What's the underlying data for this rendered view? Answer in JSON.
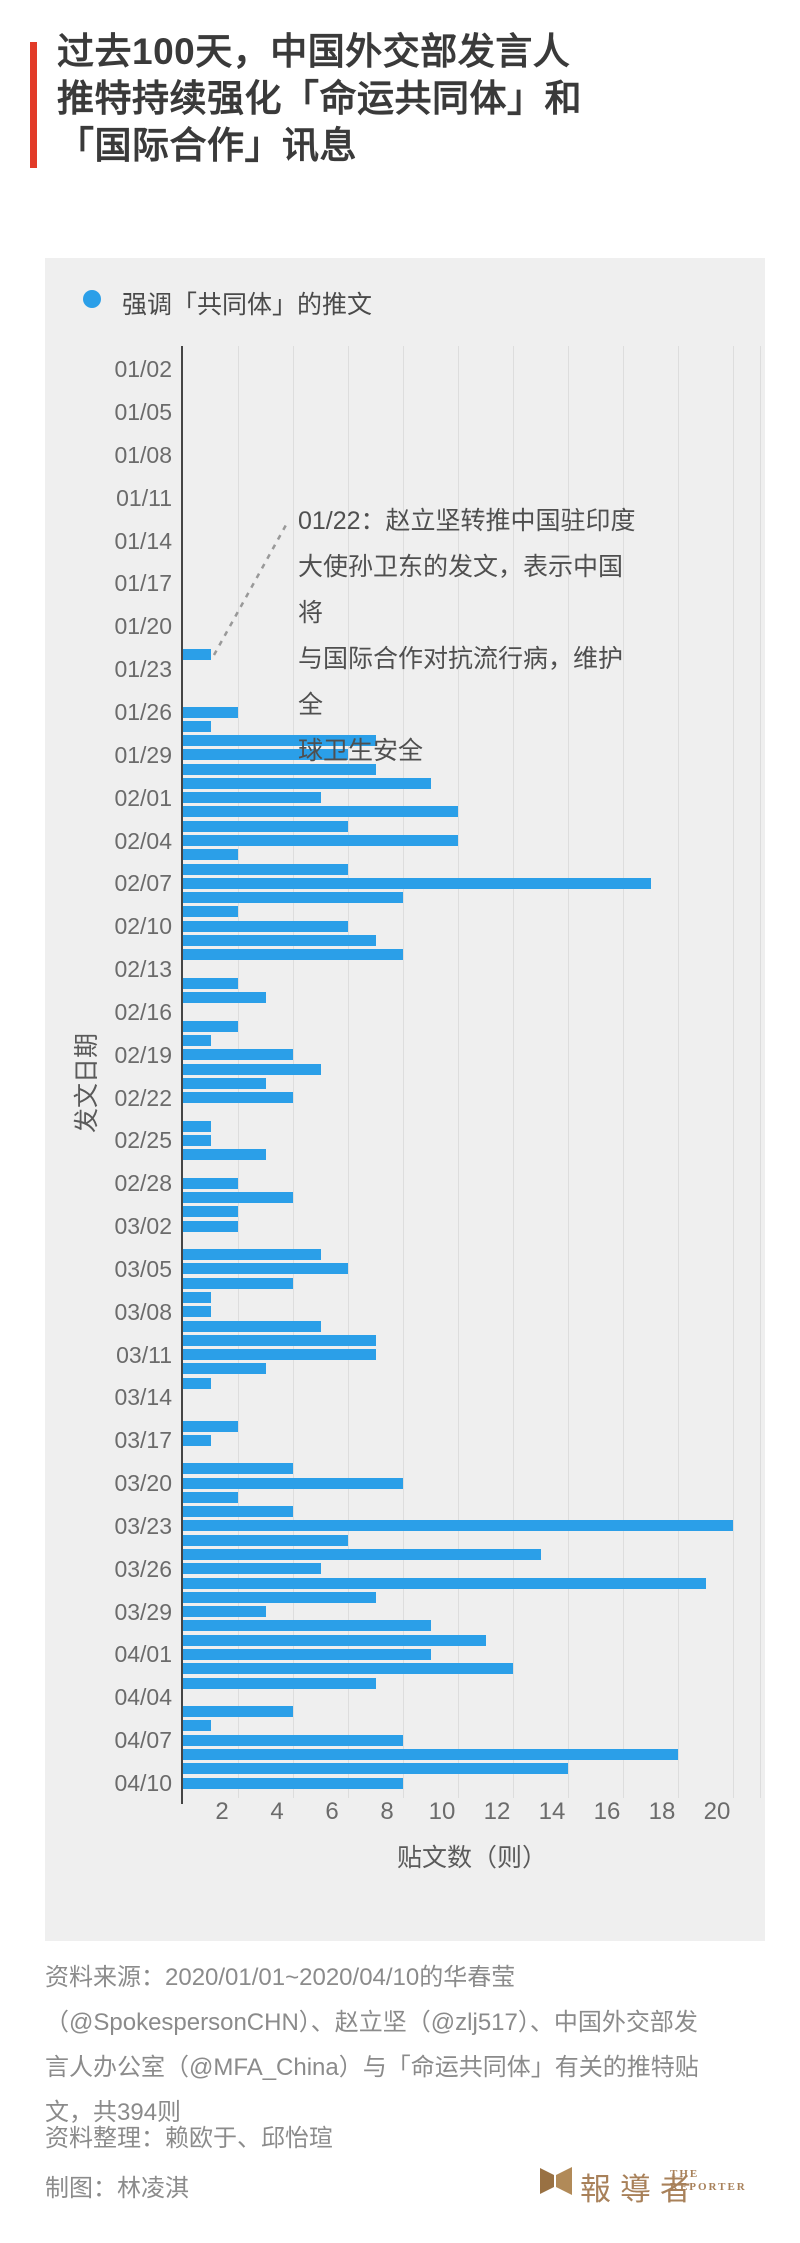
{
  "title": {
    "text": "过去100天，中国外交部发言人\n推特持续强化「命运共同体」和\n「国际合作」讯息"
  },
  "legend": {
    "label": "强调「共同体」的推文"
  },
  "annotation": {
    "text": "01/22：赵立坚转推中国驻印度\n大使孙卫东的发文，表示中国将\n与国际合作对抗流行病，维护全\n球卫生安全"
  },
  "chart_data": {
    "type": "bar",
    "orientation": "horizontal",
    "series_name": "强调「共同体」的推文",
    "xlabel": "贴文数（则）",
    "ylabel": "发文日期",
    "xlim": [
      0,
      21
    ],
    "xticks": [
      2,
      4,
      6,
      8,
      10,
      12,
      14,
      16,
      18,
      20
    ],
    "grid": true,
    "legend_position": "top-left",
    "y_label_interval": "every 3 days, starting 01/02",
    "total_posts": 394,
    "dates": [
      "01/01",
      "01/02",
      "01/03",
      "01/04",
      "01/05",
      "01/06",
      "01/07",
      "01/08",
      "01/09",
      "01/10",
      "01/11",
      "01/12",
      "01/13",
      "01/14",
      "01/15",
      "01/16",
      "01/17",
      "01/18",
      "01/19",
      "01/20",
      "01/21",
      "01/22",
      "01/23",
      "01/24",
      "01/25",
      "01/26",
      "01/27",
      "01/28",
      "01/29",
      "01/30",
      "01/31",
      "02/01",
      "02/02",
      "02/03",
      "02/04",
      "02/05",
      "02/06",
      "02/07",
      "02/08",
      "02/09",
      "02/10",
      "02/11",
      "02/12",
      "02/13",
      "02/14",
      "02/15",
      "02/16",
      "02/17",
      "02/18",
      "02/19",
      "02/20",
      "02/21",
      "02/22",
      "02/23",
      "02/24",
      "02/25",
      "02/26",
      "02/27",
      "02/28",
      "02/29",
      "03/01",
      "03/02",
      "03/03",
      "03/04",
      "03/05",
      "03/06",
      "03/07",
      "03/08",
      "03/09",
      "03/10",
      "03/11",
      "03/12",
      "03/13",
      "03/14",
      "03/15",
      "03/16",
      "03/17",
      "03/18",
      "03/19",
      "03/20",
      "03/21",
      "03/22",
      "03/23",
      "03/24",
      "03/25",
      "03/26",
      "03/27",
      "03/28",
      "03/29",
      "03/30",
      "03/31",
      "04/01",
      "04/02",
      "04/03",
      "04/04",
      "04/05",
      "04/06",
      "04/07",
      "04/08",
      "04/09",
      "04/10"
    ],
    "values": [
      0,
      0,
      0,
      0,
      0,
      0,
      0,
      0,
      0,
      0,
      0,
      0,
      0,
      0,
      0,
      0,
      0,
      0,
      0,
      0,
      0,
      1,
      0,
      0,
      0,
      2,
      1,
      7,
      6,
      7,
      9,
      5,
      10,
      6,
      10,
      2,
      6,
      17,
      8,
      2,
      6,
      7,
      8,
      0,
      2,
      3,
      0,
      2,
      1,
      4,
      5,
      3,
      4,
      0,
      1,
      1,
      3,
      0,
      2,
      4,
      2,
      2,
      0,
      5,
      6,
      4,
      1,
      1,
      5,
      7,
      7,
      3,
      1,
      0,
      0,
      2,
      1,
      0,
      4,
      8,
      2,
      4,
      20,
      6,
      13,
      5,
      19,
      7,
      3,
      9,
      11,
      9,
      12,
      7,
      0,
      4,
      1,
      8,
      18,
      14,
      8
    ]
  },
  "footer": {
    "source": "资料来源：2020/01/01~2020/04/10的华春莹\n（@SpokespersonCHN）、赵立坚（@zlj517）、中国外交部发\n言人办公室（@MFA_China）与「命运共同体」有关的推特贴\n文，共394则",
    "data_credit": "资料整理：赖欧于、邱怡瑄",
    "graphic_credit": "制图：林凌淇"
  },
  "logo": {
    "cjk": "報導者",
    "en": "THE\nREPORTER"
  },
  "colors": {
    "bar": "#2b9fe8",
    "panel_bg": "#efefef",
    "accent_red": "#e23b28",
    "logo_bronze": "#a8815a",
    "gridline": "#dddddd",
    "axis": "#454545"
  }
}
